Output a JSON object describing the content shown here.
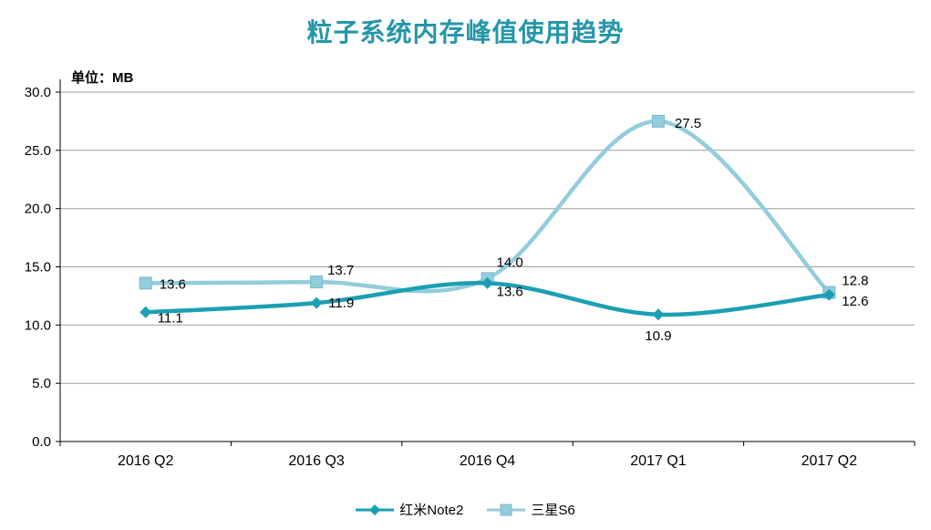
{
  "title": "粒子系统内存峰值使用趋势",
  "unit_label": "单位：MB",
  "accent_color": "#2596A9",
  "chart_data": {
    "type": "line",
    "smooth": true,
    "grid": true,
    "legend_position": "bottom",
    "categories": [
      "2016 Q2",
      "2016 Q3",
      "2016 Q4",
      "2017 Q1",
      "2017 Q2"
    ],
    "series": [
      {
        "name": "红米Note2",
        "color": "#1B9FB3",
        "marker": "diamond",
        "values": [
          11.1,
          11.9,
          13.6,
          10.9,
          12.6
        ]
      },
      {
        "name": "三星S6",
        "color": "#92CDDC",
        "marker": "square",
        "values": [
          13.6,
          13.7,
          14.0,
          27.5,
          12.8
        ]
      }
    ],
    "ylim": [
      0,
      30
    ],
    "ytick_step": 5,
    "ytick_labels": [
      "0.0",
      "5.0",
      "10.0",
      "15.0",
      "20.0",
      "25.0",
      "30.0"
    ],
    "xlabel": "",
    "ylabel": ""
  }
}
